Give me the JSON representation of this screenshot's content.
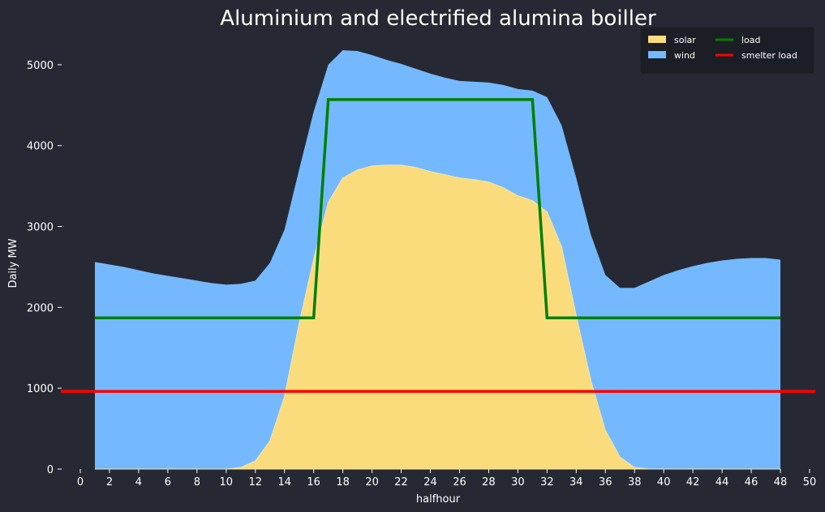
{
  "chart_data": {
    "type": "area",
    "title": "Aluminium and electrified alumina boiller",
    "xlabel": "halfhour",
    "ylabel": "Daily MW",
    "xlim": [
      0,
      50
    ],
    "ylim": [
      0,
      5400
    ],
    "xticks": [
      0,
      2,
      4,
      6,
      8,
      10,
      12,
      14,
      16,
      18,
      20,
      22,
      24,
      26,
      28,
      30,
      32,
      34,
      36,
      38,
      40,
      42,
      44,
      46,
      48,
      50
    ],
    "yticks": [
      0,
      1000,
      2000,
      3000,
      4000,
      5000
    ],
    "grid": false,
    "legend_position": "top-right",
    "x": [
      1,
      2,
      3,
      4,
      5,
      6,
      7,
      8,
      9,
      10,
      11,
      12,
      13,
      14,
      15,
      16,
      17,
      18,
      19,
      20,
      21,
      22,
      23,
      24,
      25,
      26,
      27,
      28,
      29,
      30,
      31,
      32,
      33,
      34,
      35,
      36,
      37,
      38,
      39,
      40,
      41,
      42,
      43,
      44,
      45,
      46,
      47,
      48
    ],
    "series": [
      {
        "name": "solar",
        "kind": "area",
        "color": "#fadc7d",
        "values": [
          0,
          0,
          0,
          0,
          0,
          0,
          0,
          0,
          0,
          0,
          20,
          100,
          350,
          900,
          1800,
          2600,
          3300,
          3600,
          3700,
          3750,
          3760,
          3760,
          3730,
          3680,
          3640,
          3600,
          3580,
          3550,
          3480,
          3380,
          3320,
          3180,
          2750,
          1900,
          1100,
          480,
          150,
          20,
          0,
          0,
          0,
          0,
          0,
          0,
          0,
          0,
          0,
          0
        ]
      },
      {
        "name": "wind",
        "kind": "stacked_area_total",
        "color": "#74b9ff",
        "values": [
          2560,
          2530,
          2500,
          2460,
          2420,
          2390,
          2360,
          2330,
          2300,
          2280,
          2290,
          2330,
          2550,
          2960,
          3700,
          4420,
          5000,
          5180,
          5170,
          5120,
          5060,
          5010,
          4950,
          4890,
          4840,
          4800,
          4790,
          4780,
          4750,
          4700,
          4680,
          4600,
          4250,
          3600,
          2900,
          2400,
          2240,
          2240,
          2320,
          2400,
          2460,
          2510,
          2550,
          2580,
          2600,
          2610,
          2610,
          2590
        ]
      },
      {
        "name": "load",
        "kind": "line",
        "color": "#008000",
        "values": [
          1870,
          1870,
          1870,
          1870,
          1870,
          1870,
          1870,
          1870,
          1870,
          1870,
          1870,
          1870,
          1870,
          1870,
          1870,
          1870,
          4570,
          4570,
          4570,
          4570,
          4570,
          4570,
          4570,
          4570,
          4570,
          4570,
          4570,
          4570,
          4570,
          4570,
          4570,
          1870,
          1870,
          1870,
          1870,
          1870,
          1870,
          1870,
          1870,
          1870,
          1870,
          1870,
          1870,
          1870,
          1870,
          1870,
          1870,
          1870
        ]
      },
      {
        "name": "smelter load",
        "kind": "hline",
        "color": "#ff0000",
        "value": 960
      }
    ]
  }
}
